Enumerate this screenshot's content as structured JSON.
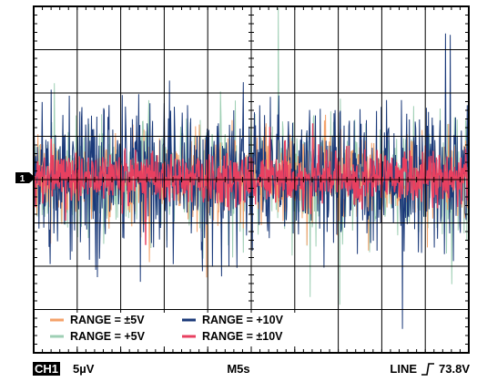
{
  "chart_data": {
    "type": "line",
    "series": [
      {
        "name": "RANGE = ±5V",
        "color": "#f4a26a",
        "amplitude_uV": 12
      },
      {
        "name": "RANGE = +5V",
        "color": "#9ecfb4",
        "amplitude_uV": 16
      },
      {
        "name": "RANGE = +10V",
        "color": "#1b3a7a",
        "amplitude_uV": 20
      },
      {
        "name": "RANGE = ±10V",
        "color": "#e84060",
        "amplitude_uV": 7
      }
    ],
    "grid": true,
    "legend_position": "bottom-left"
  },
  "status": {
    "channel": "CH1",
    "scale": "5µV",
    "timebase": "M5s",
    "trigger_source": "LINE",
    "trigger_level": "73.8V"
  },
  "marker": {
    "label": "1"
  }
}
